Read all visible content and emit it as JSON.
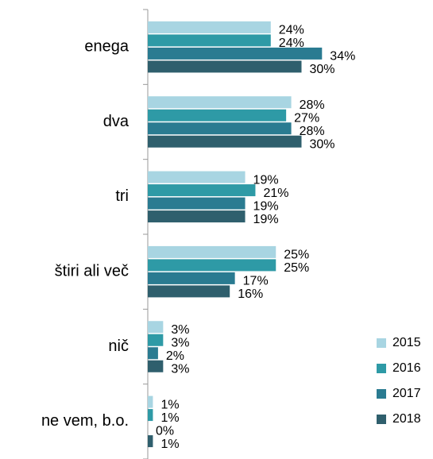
{
  "chart_data": {
    "type": "bar",
    "orientation": "horizontal",
    "categories": [
      "enega",
      "dva",
      "tri",
      "štiri ali več",
      "nič",
      "ne vem, b.o."
    ],
    "series": [
      {
        "name": "2015",
        "color": "#a8d5e2",
        "values": [
          24,
          28,
          19,
          25,
          3,
          1
        ],
        "value_labels": [
          "24%",
          "28%",
          "19%",
          "25%",
          "3%",
          "1%"
        ]
      },
      {
        "name": "2016",
        "color": "#2e9aa6",
        "values": [
          24,
          27,
          21,
          25,
          3,
          1
        ],
        "value_labels": [
          "24%",
          "27%",
          "21%",
          "25%",
          "3%",
          "1%"
        ]
      },
      {
        "name": "2017",
        "color": "#2a7b91",
        "values": [
          34,
          28,
          19,
          17,
          2,
          0
        ],
        "value_labels": [
          "34%",
          "28%",
          "19%",
          "17%",
          "2%",
          "0%"
        ]
      },
      {
        "name": "2018",
        "color": "#2f5f6d",
        "values": [
          30,
          30,
          19,
          16,
          3,
          1
        ],
        "value_labels": [
          "30%",
          "30%",
          "19%",
          "16%",
          "3%",
          "1%"
        ]
      }
    ]
  }
}
